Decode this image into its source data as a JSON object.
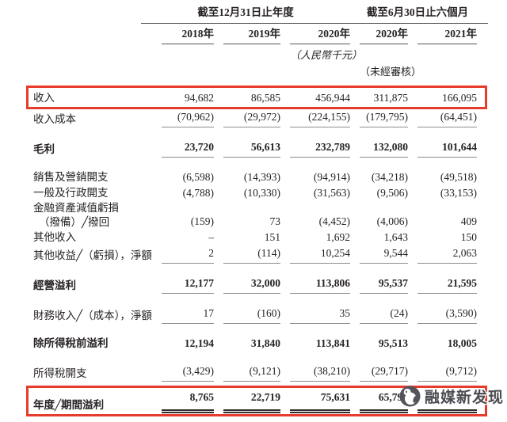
{
  "header": {
    "group1": "截至12月31日止年度",
    "group2": "截至6月30日止六個月",
    "years": [
      "2018年",
      "2019年",
      "2020年",
      "2020年",
      "2021年"
    ],
    "unit_note": "（人民幣千元）",
    "unaudited_note": "（未經審核）"
  },
  "table": {
    "rows": [
      {
        "label": "收入",
        "values": [
          "94,682",
          "86,585",
          "456,944",
          "311,875",
          "166,095"
        ],
        "bold": false,
        "underline": "none",
        "highlight": true,
        "gap_before": false
      },
      {
        "label": "收入成本",
        "values": [
          "(70,962)",
          "(29,972)",
          "(224,155)",
          "(179,795)",
          "(64,451)"
        ],
        "bold": false,
        "underline": "single",
        "highlight": false,
        "gap_before": false
      },
      {
        "label": "毛利",
        "values": [
          "23,720",
          "56,613",
          "232,789",
          "132,080",
          "101,644"
        ],
        "bold": true,
        "underline": "single",
        "highlight": false,
        "gap_before": true
      },
      {
        "label": "銷售及營銷開支",
        "values": [
          "(6,598)",
          "(14,393)",
          "(94,914)",
          "(34,218)",
          "(49,518)"
        ],
        "bold": false,
        "underline": "none",
        "highlight": false,
        "gap_before": true
      },
      {
        "label": "一般及行政開支",
        "values": [
          "(4,788)",
          "(10,330)",
          "(31,563)",
          "(9,506)",
          "(33,153)"
        ],
        "bold": false,
        "underline": "none",
        "highlight": false,
        "gap_before": false
      },
      {
        "label_lines": [
          "金融資產減值虧損",
          "（撥備）╱撥回"
        ],
        "values": [
          "(159)",
          "73",
          "(4,452)",
          "(4,006)",
          "409"
        ],
        "bold": false,
        "underline": "none",
        "highlight": false,
        "gap_before": false
      },
      {
        "label": "其他收入",
        "values": [
          "–",
          "151",
          "1,692",
          "1,643",
          "150"
        ],
        "bold": false,
        "underline": "none",
        "highlight": false,
        "gap_before": false
      },
      {
        "label": "其他收益╱（虧損），淨額",
        "values": [
          "2",
          "(114)",
          "10,254",
          "9,544",
          "2,063"
        ],
        "bold": false,
        "underline": "single",
        "highlight": false,
        "gap_before": false
      },
      {
        "label": "經營溢利",
        "values": [
          "12,177",
          "32,000",
          "113,806",
          "95,537",
          "21,595"
        ],
        "bold": true,
        "underline": "single",
        "highlight": false,
        "gap_before": true
      },
      {
        "label": "財務收入╱（成本），淨額",
        "values": [
          "17",
          "(160)",
          "35",
          "(24)",
          "(3,590)"
        ],
        "bold": false,
        "underline": "single",
        "highlight": false,
        "gap_before": true
      },
      {
        "label": "除所得稅前溢利",
        "values": [
          "12,194",
          "31,840",
          "113,841",
          "95,513",
          "18,005"
        ],
        "bold": true,
        "underline": "none",
        "highlight": false,
        "gap_before": true
      },
      {
        "label": "所得稅開支",
        "values": [
          "(3,429)",
          "(9,121)",
          "(38,210)",
          "(29,717)",
          "(9,712)"
        ],
        "bold": false,
        "underline": "single",
        "highlight": false,
        "gap_before": true
      },
      {
        "label": "年度╱期間溢利",
        "values": [
          "8,765",
          "22,719",
          "75,631",
          "65,796",
          ""
        ],
        "bold": true,
        "underline": "double",
        "highlight": true,
        "gap_before": false
      }
    ]
  },
  "watermark": {
    "text": "融媒新发现",
    "logo": "penguin-icon"
  },
  "colors": {
    "highlight_red": "#e73b2c",
    "text": "#262224",
    "rule_gray": "#8c8c8c",
    "watermark_gray": "#4c4d52",
    "logo_circle": "#54555a"
  }
}
